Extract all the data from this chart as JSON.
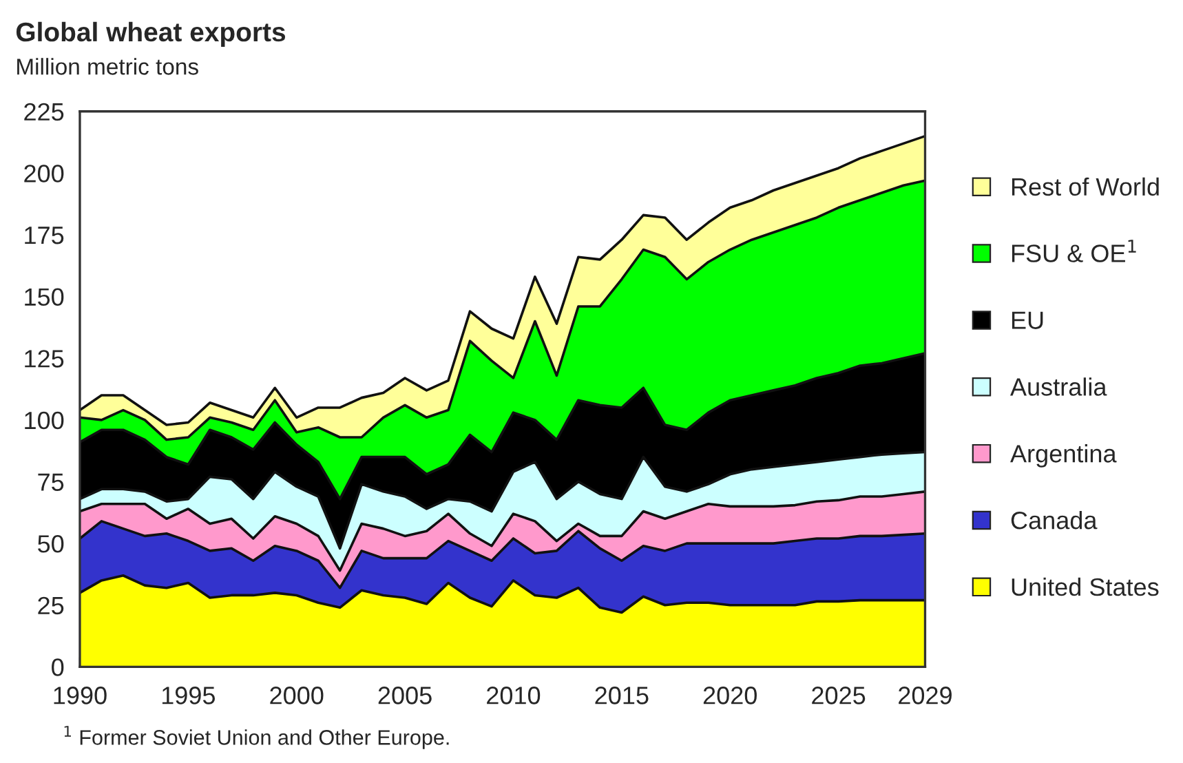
{
  "chart_data": {
    "type": "area",
    "stacked": true,
    "title": "Global wheat exports",
    "subtitle": "Million metric tons",
    "x": [
      1990,
      1991,
      1992,
      1993,
      1994,
      1995,
      1996,
      1997,
      1998,
      1999,
      2000,
      2001,
      2002,
      2003,
      2004,
      2005,
      2006,
      2007,
      2008,
      2009,
      2010,
      2011,
      2012,
      2013,
      2014,
      2015,
      2016,
      2017,
      2018,
      2019,
      2020,
      2021,
      2022,
      2023,
      2024,
      2025,
      2026,
      2027,
      2028,
      2029
    ],
    "series": [
      {
        "name": "United States",
        "color": "#ffff00",
        "values": [
          30,
          35,
          37,
          33,
          32,
          34,
          28,
          29,
          29,
          30,
          29,
          26,
          24,
          31,
          29,
          28,
          25.5,
          34,
          28,
          24.5,
          35,
          29,
          28,
          32,
          24,
          22,
          28.5,
          25,
          26,
          26,
          25,
          25,
          25,
          25,
          26.5,
          26.5,
          27,
          27,
          27,
          27
        ]
      },
      {
        "name": "Canada",
        "color": "#3333cc",
        "values": [
          22,
          24,
          19,
          20,
          22,
          17,
          19,
          19,
          14,
          19,
          18,
          17,
          8,
          16,
          15,
          16,
          18.5,
          17,
          19,
          18.5,
          17,
          17,
          19,
          23,
          24,
          21,
          20.5,
          22,
          24,
          24,
          25,
          25,
          25,
          26,
          25.5,
          25.5,
          26,
          26,
          26.5,
          27
        ]
      },
      {
        "name": "Argentina",
        "color": "#ff99cc",
        "values": [
          11,
          7,
          10,
          13,
          6,
          13,
          11,
          12,
          9,
          12,
          11,
          10,
          7,
          11,
          12,
          9,
          11,
          11,
          7,
          6,
          10,
          13,
          4,
          3,
          5,
          10,
          14,
          13,
          13,
          16,
          15,
          15,
          15,
          14.5,
          15,
          15.5,
          16,
          16,
          16.5,
          17
        ]
      },
      {
        "name": "Australia",
        "color": "#ccffff",
        "values": [
          5,
          6,
          6,
          5,
          7,
          4,
          19,
          16,
          16,
          18,
          15,
          16,
          9,
          16,
          15,
          16,
          9,
          6,
          13,
          14,
          17,
          24,
          17,
          17,
          17,
          15,
          22,
          13,
          8,
          8,
          13,
          15,
          16,
          16.5,
          16,
          16.5,
          16,
          17,
          16.5,
          16
        ]
      },
      {
        "name": "EU",
        "color": "#000000",
        "values": [
          23,
          24,
          24,
          21,
          18,
          14,
          19,
          17,
          20,
          20,
          17,
          14,
          20,
          11,
          14,
          16,
          14,
          14,
          27,
          24,
          24,
          17,
          24,
          33,
          36,
          37,
          28,
          25,
          25,
          29,
          30,
          30,
          31,
          32,
          34,
          35,
          37,
          37,
          38.5,
          40
        ]
      },
      {
        "name": "FSU & OE$^{1}$",
        "color": "#00ff00",
        "values": [
          10,
          4,
          8,
          8,
          7,
          11,
          5,
          6,
          8,
          9,
          5,
          14,
          25,
          8,
          16,
          21,
          23,
          22,
          38,
          37,
          14,
          40,
          26,
          38,
          40,
          52,
          56,
          68,
          61,
          61,
          61,
          63,
          64,
          65,
          65,
          67,
          67,
          69,
          70,
          70
        ]
      },
      {
        "name": "Rest of World",
        "color": "#ffff99",
        "values": [
          3,
          10,
          6,
          4,
          6,
          6,
          6,
          5,
          5,
          5,
          6,
          8,
          12,
          16,
          10,
          11,
          11,
          12,
          12,
          13,
          16,
          18,
          21,
          20,
          19,
          16,
          14,
          16,
          16,
          16,
          17,
          16,
          17,
          17,
          17,
          16,
          17,
          17,
          17,
          18
        ]
      }
    ],
    "xlim": [
      1990,
      2029
    ],
    "xticks": [
      1990,
      1995,
      2000,
      2005,
      2010,
      2015,
      2020,
      2025,
      2029
    ],
    "ylim": [
      0,
      225
    ],
    "yticks": [
      0,
      25,
      50,
      75,
      100,
      125,
      150,
      175,
      200,
      225
    ],
    "grid": false,
    "legend": "right",
    "annotations": [
      "$^{1}$ Former Soviet Union and Other Europe."
    ]
  }
}
